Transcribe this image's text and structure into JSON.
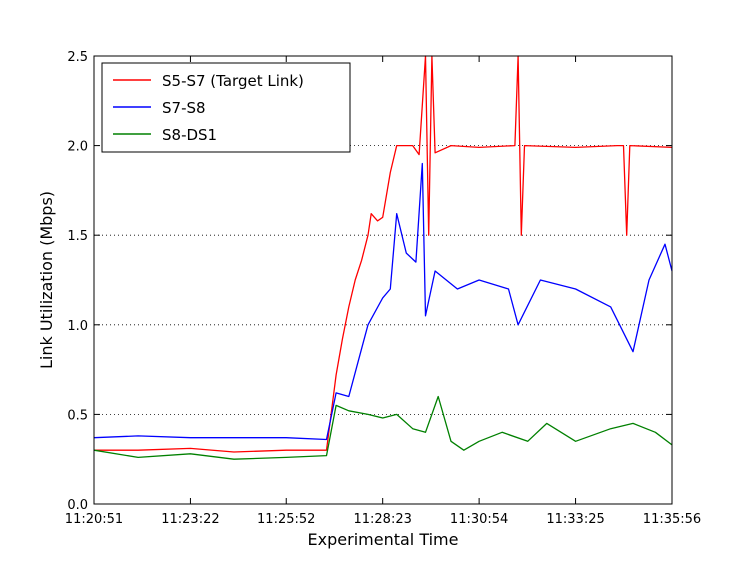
{
  "chart_data": {
    "type": "line",
    "title": "",
    "xlabel": "Experimental Time",
    "ylabel": "Link Utilization (Mbps)",
    "x_ticks": [
      "11:20:51",
      "11:23:22",
      "11:25:52",
      "11:28:23",
      "11:30:54",
      "11:33:25",
      "11:35:56"
    ],
    "x_range": [
      "11:20:51",
      "11:35:56"
    ],
    "y_ticks": [
      "0.0",
      "0.5",
      "1.0",
      "1.5",
      "2.0",
      "2.5"
    ],
    "ylim": [
      0,
      2.5
    ],
    "grid": "horizontal dotted",
    "legend_position": "top-left",
    "series": [
      {
        "name": "S5-S7 (Target Link)",
        "color": "#ff0000",
        "points": [
          [
            "11:20:51",
            0.3
          ],
          [
            "11:22:00",
            0.3
          ],
          [
            "11:23:22",
            0.31
          ],
          [
            "11:24:30",
            0.29
          ],
          [
            "11:25:52",
            0.3
          ],
          [
            "11:26:55",
            0.3
          ],
          [
            "11:27:10",
            0.72
          ],
          [
            "11:27:20",
            0.92
          ],
          [
            "11:27:30",
            1.1
          ],
          [
            "11:27:40",
            1.25
          ],
          [
            "11:27:50",
            1.36
          ],
          [
            "11:28:00",
            1.5
          ],
          [
            "11:28:05",
            1.62
          ],
          [
            "11:28:15",
            1.58
          ],
          [
            "11:28:23",
            1.6
          ],
          [
            "11:28:35",
            1.85
          ],
          [
            "11:28:45",
            2.0
          ],
          [
            "11:29:10",
            2.0
          ],
          [
            "11:29:20",
            1.95
          ],
          [
            "11:29:30",
            2.5
          ],
          [
            "11:29:35",
            1.5
          ],
          [
            "11:29:40",
            2.5
          ],
          [
            "11:29:45",
            1.96
          ],
          [
            "11:30:10",
            2.0
          ],
          [
            "11:30:54",
            1.99
          ],
          [
            "11:31:50",
            2.0
          ],
          [
            "11:31:55",
            2.5
          ],
          [
            "11:32:00",
            1.5
          ],
          [
            "11:32:05",
            2.0
          ],
          [
            "11:33:25",
            1.99
          ],
          [
            "11:34:30",
            2.0
          ],
          [
            "11:34:40",
            2.0
          ],
          [
            "11:34:45",
            1.5
          ],
          [
            "11:34:50",
            2.0
          ],
          [
            "11:35:56",
            1.99
          ]
        ]
      },
      {
        "name": "S7-S8",
        "color": "#0000ff",
        "points": [
          [
            "11:20:51",
            0.37
          ],
          [
            "11:22:00",
            0.38
          ],
          [
            "11:23:22",
            0.37
          ],
          [
            "11:24:30",
            0.37
          ],
          [
            "11:25:52",
            0.37
          ],
          [
            "11:26:55",
            0.36
          ],
          [
            "11:27:10",
            0.62
          ],
          [
            "11:27:30",
            0.6
          ],
          [
            "11:27:45",
            0.8
          ],
          [
            "11:28:00",
            1.0
          ],
          [
            "11:28:23",
            1.15
          ],
          [
            "11:28:35",
            1.2
          ],
          [
            "11:28:45",
            1.62
          ],
          [
            "11:29:00",
            1.4
          ],
          [
            "11:29:15",
            1.35
          ],
          [
            "11:29:25",
            1.9
          ],
          [
            "11:29:30",
            1.05
          ],
          [
            "11:29:45",
            1.3
          ],
          [
            "11:30:20",
            1.2
          ],
          [
            "11:30:54",
            1.25
          ],
          [
            "11:31:40",
            1.2
          ],
          [
            "11:31:55",
            1.0
          ],
          [
            "11:32:30",
            1.25
          ],
          [
            "11:33:25",
            1.2
          ],
          [
            "11:34:20",
            1.1
          ],
          [
            "11:34:55",
            0.85
          ],
          [
            "11:35:20",
            1.25
          ],
          [
            "11:35:45",
            1.45
          ],
          [
            "11:35:56",
            1.3
          ]
        ]
      },
      {
        "name": "S8-DS1",
        "color": "#008000",
        "points": [
          [
            "11:20:51",
            0.3
          ],
          [
            "11:22:00",
            0.26
          ],
          [
            "11:23:22",
            0.28
          ],
          [
            "11:24:30",
            0.25
          ],
          [
            "11:25:52",
            0.26
          ],
          [
            "11:26:55",
            0.27
          ],
          [
            "11:27:10",
            0.55
          ],
          [
            "11:27:30",
            0.52
          ],
          [
            "11:28:00",
            0.5
          ],
          [
            "11:28:23",
            0.48
          ],
          [
            "11:28:45",
            0.5
          ],
          [
            "11:29:10",
            0.42
          ],
          [
            "11:29:30",
            0.4
          ],
          [
            "11:29:50",
            0.6
          ],
          [
            "11:30:10",
            0.35
          ],
          [
            "11:30:30",
            0.3
          ],
          [
            "11:30:54",
            0.35
          ],
          [
            "11:31:30",
            0.4
          ],
          [
            "11:32:10",
            0.35
          ],
          [
            "11:32:40",
            0.45
          ],
          [
            "11:33:25",
            0.35
          ],
          [
            "11:34:20",
            0.42
          ],
          [
            "11:34:55",
            0.45
          ],
          [
            "11:35:30",
            0.4
          ],
          [
            "11:35:56",
            0.33
          ]
        ]
      }
    ]
  }
}
